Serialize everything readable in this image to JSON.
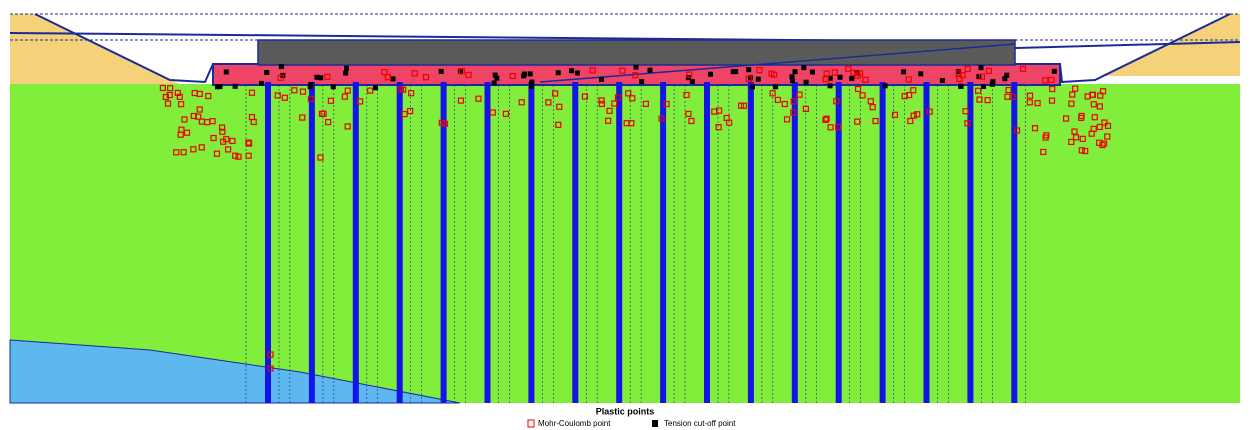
{
  "legend": {
    "title": "Plastic points",
    "items": [
      {
        "label": "Mohr-Coulomb point"
      },
      {
        "label": "Tension cut-off point"
      }
    ]
  }
}
